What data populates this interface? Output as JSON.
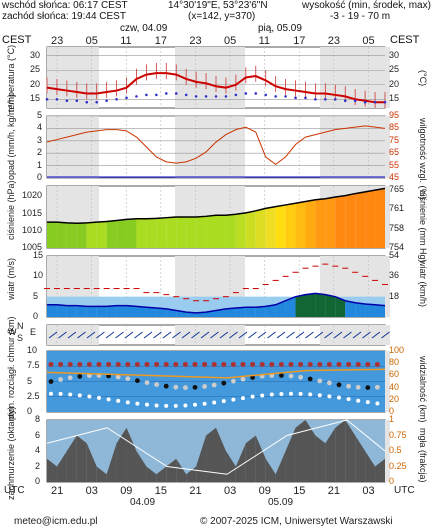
{
  "header": {
    "sunrise": "wschód słońca: 06:17 CEST",
    "sunset": "zachód słońca: 19:44 CEST",
    "coords": "14°30'19\"E, 53°23'6\"N",
    "grid": "(x=142,  y=370)",
    "elevation_title": "wysokość (min, środek, max)",
    "elevation_values": "-3 - 19 - 70 m",
    "tz_left": "CEST",
    "tz_right": "CEST",
    "day1": "czw, 04.09",
    "day2": "pią, 05.09",
    "top_hours": [
      "23",
      "05",
      "11",
      "17",
      "23",
      "05",
      "11",
      "17",
      "23",
      "05"
    ]
  },
  "footer": {
    "tz_left": "UTC",
    "tz_right": "UTC",
    "hours": [
      "21",
      "03",
      "09",
      "15",
      "21",
      "03",
      "09",
      "15",
      "21",
      "03"
    ],
    "day1": "04.09",
    "day2": "05.09",
    "email": "meteo@icm.edu.pl",
    "copyright": "© 2007-2025 ICM, Uniwersytet Warszawski"
  },
  "chart_data": [
    {
      "type": "line",
      "name": "temperature",
      "ylabel_left": "temperatura (°C)",
      "ylabel_right": "(°C)",
      "yticks": [
        15,
        20,
        25,
        30
      ],
      "ylim": [
        12,
        33
      ],
      "colors": {
        "temp": "#cc0000",
        "dew": "#3333cc"
      },
      "temp": [
        19,
        18.5,
        18,
        17.5,
        17,
        17,
        17.5,
        18,
        19,
        22,
        23.5,
        24,
        24,
        23.5,
        22,
        21,
        20.5,
        19.5,
        19,
        20,
        22.5,
        23,
        21.5,
        19.5,
        18.5,
        18,
        17.5,
        17,
        17,
        16.5,
        16,
        15,
        14.5,
        14,
        14
      ],
      "dew": [
        15,
        15,
        14.5,
        14.5,
        14,
        14,
        14.5,
        15,
        15.5,
        16,
        16.5,
        16.5,
        17,
        17,
        16.5,
        16,
        16,
        16,
        16,
        16.5,
        17,
        17,
        16.5,
        16,
        16,
        15.5,
        15.5,
        15,
        15,
        15,
        14.5,
        14.5,
        14,
        14,
        14
      ]
    },
    {
      "type": "line",
      "name": "precipitation_humidity",
      "ylabel_left": "opad (mm/h, kg/m²/h)",
      "ylabel_right": "wilgotność wzgl. (%)",
      "yticks_left": [
        0,
        1,
        2,
        3,
        4,
        5
      ],
      "yticks_right": [
        45,
        55,
        65,
        75,
        85,
        95
      ],
      "ylim_left": [
        0,
        5
      ],
      "ylim_right": [
        45,
        95
      ],
      "colors": {
        "humidity": "#cc3300",
        "precip": "#0000cc"
      },
      "humidity": [
        74,
        76,
        78,
        80,
        82,
        83,
        84,
        84,
        83,
        78,
        70,
        62,
        58,
        57,
        58,
        61,
        66,
        74,
        80,
        84,
        86,
        82,
        62,
        56,
        62,
        72,
        78,
        80,
        82,
        84,
        85,
        86,
        87,
        86,
        85
      ],
      "precip": [
        0,
        0,
        0,
        0,
        0,
        0,
        0,
        0,
        0,
        0,
        0,
        0,
        0,
        0,
        0,
        0,
        0,
        0,
        0,
        0,
        0,
        0,
        0,
        0,
        0,
        0,
        0,
        0,
        0,
        0,
        0,
        0,
        0,
        0,
        0
      ]
    },
    {
      "type": "area",
      "name": "pressure",
      "ylabel_left": "ciśnienie (hPa)",
      "ylabel_right": "ciśnienie (mm Hg)",
      "yticks_left": [
        1005,
        1010,
        1015,
        1020
      ],
      "yticks_right": [
        754,
        758,
        761,
        765
      ],
      "ylim": [
        1005,
        1023
      ],
      "pressure": [
        1012.5,
        1012.5,
        1012.3,
        1012.2,
        1012.3,
        1012.5,
        1012.7,
        1013,
        1013.3,
        1013.5,
        1013.5,
        1013.6,
        1013.8,
        1014,
        1014,
        1014,
        1014.2,
        1014.5,
        1014.5,
        1014.8,
        1015.2,
        1015.8,
        1016.5,
        1017,
        1017.5,
        1018,
        1018.5,
        1019,
        1019.3,
        1019.8,
        1020.2,
        1020.8,
        1021.3,
        1021.8,
        1022.3
      ]
    },
    {
      "type": "line",
      "name": "wind",
      "ylabel_left": "wiatr (m/s)",
      "ylabel_right": "wiatr (km/h)",
      "yticks_left": [
        0,
        5,
        10,
        15
      ],
      "yticks_right": [
        18,
        36,
        54
      ],
      "ylim": [
        0,
        15
      ],
      "colors": {
        "gust": "#cc0000",
        "mean": "#0000aa"
      },
      "mean": [
        3,
        3,
        2.8,
        2.8,
        2.6,
        2.6,
        2.6,
        2.8,
        2.8,
        2.6,
        2.4,
        2.2,
        2,
        1.6,
        1.2,
        1,
        1.2,
        1.6,
        2,
        2.2,
        2.4,
        2.4,
        2.6,
        3,
        4,
        5,
        5.5,
        5.8,
        5.5,
        5,
        4,
        3.5,
        3.2,
        3,
        2.8
      ],
      "gust": [
        7,
        7,
        7,
        7,
        7,
        7,
        7,
        7,
        7,
        7,
        6,
        6,
        5.5,
        5,
        4.5,
        4,
        4,
        4.5,
        5,
        6,
        7,
        7,
        8,
        9,
        10,
        11,
        12,
        12.5,
        13,
        12.5,
        12,
        11,
        10,
        9,
        8
      ]
    },
    {
      "type": "scatter",
      "name": "cloud_base_visibility",
      "ylabel_left": "pion. rozciągł. chmur (km)",
      "ylabel_right": "widzialność (km)",
      "yticks_left": [
        0,
        2.5,
        5,
        7.5,
        10
      ],
      "yticks_right": [
        0,
        20,
        40,
        60,
        80,
        100
      ],
      "ylim": [
        0,
        10
      ]
    },
    {
      "type": "area",
      "name": "cloud_cover_fog",
      "ylabel_left": "zachmurzenie (oktanty)",
      "ylabel_right": "mgła (frakcja)",
      "yticks_left": [
        0,
        2,
        4,
        6,
        8
      ],
      "yticks_right": [
        0,
        0.25,
        0.5,
        0.75,
        1
      ],
      "ylim": [
        0,
        8
      ]
    }
  ]
}
